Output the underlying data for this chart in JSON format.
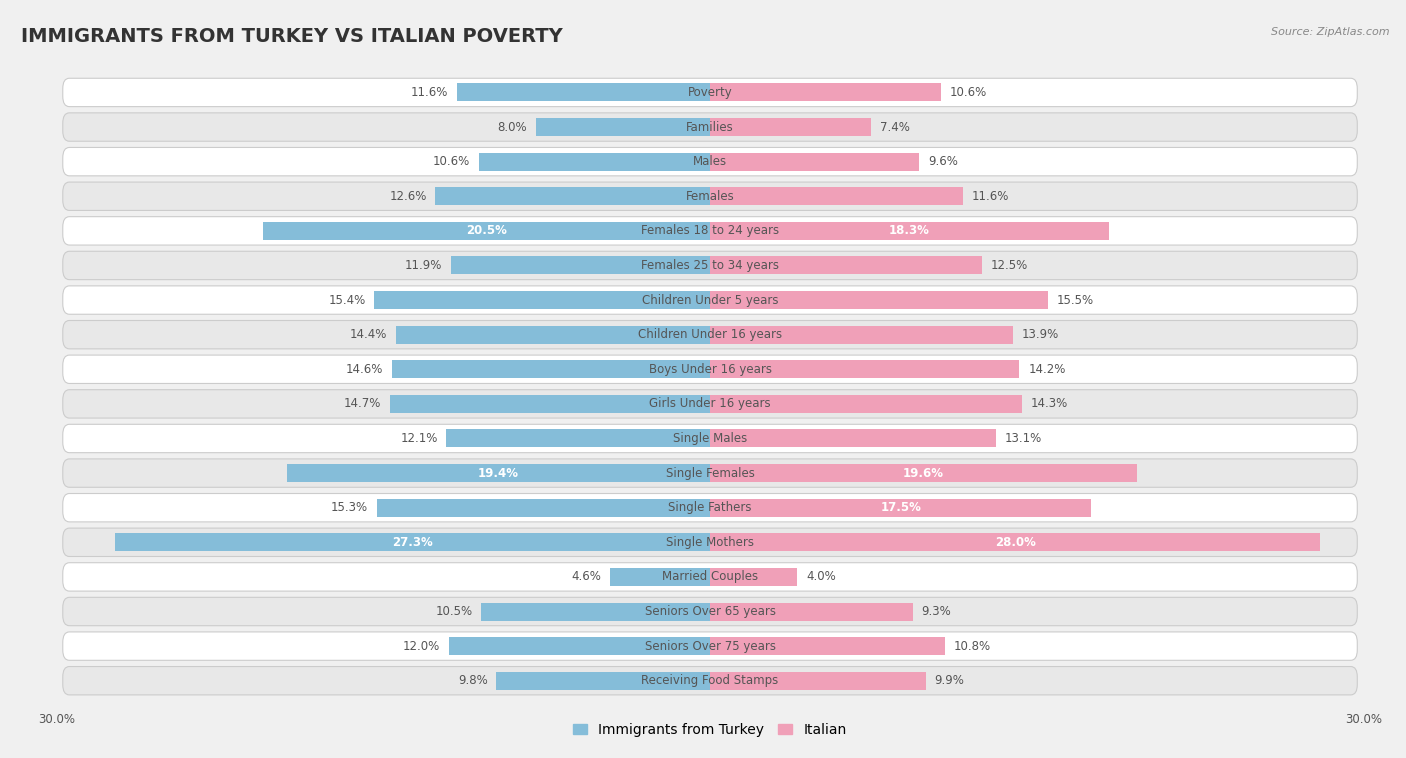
{
  "title": "IMMIGRANTS FROM TURKEY VS ITALIAN POVERTY",
  "source": "Source: ZipAtlas.com",
  "categories": [
    "Poverty",
    "Families",
    "Males",
    "Females",
    "Females 18 to 24 years",
    "Females 25 to 34 years",
    "Children Under 5 years",
    "Children Under 16 years",
    "Boys Under 16 years",
    "Girls Under 16 years",
    "Single Males",
    "Single Females",
    "Single Fathers",
    "Single Mothers",
    "Married Couples",
    "Seniors Over 65 years",
    "Seniors Over 75 years",
    "Receiving Food Stamps"
  ],
  "turkey_values": [
    11.6,
    8.0,
    10.6,
    12.6,
    20.5,
    11.9,
    15.4,
    14.4,
    14.6,
    14.7,
    12.1,
    19.4,
    15.3,
    27.3,
    4.6,
    10.5,
    12.0,
    9.8
  ],
  "italian_values": [
    10.6,
    7.4,
    9.6,
    11.6,
    18.3,
    12.5,
    15.5,
    13.9,
    14.2,
    14.3,
    13.1,
    19.6,
    17.5,
    28.0,
    4.0,
    9.3,
    10.8,
    9.9
  ],
  "turkey_color": "#85bdd9",
  "italian_color": "#f0a0b8",
  "turkey_label": "Immigrants from Turkey",
  "italian_label": "Italian",
  "xlim": 30.0,
  "bar_height": 0.52,
  "bg_color": "#f0f0f0",
  "row_color_light": "#ffffff",
  "row_color_dark": "#e8e8e8",
  "title_fontsize": 14,
  "label_fontsize": 8.5,
  "value_fontsize": 8.5,
  "legend_fontsize": 10
}
